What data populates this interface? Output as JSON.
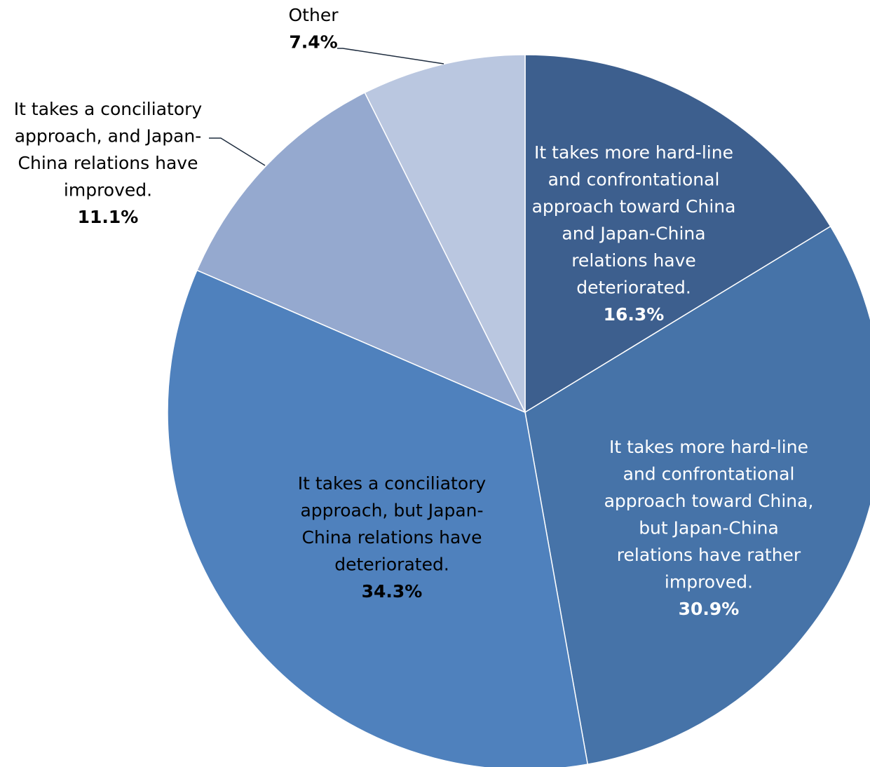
{
  "chart_data": {
    "type": "pie",
    "start_angle_deg": 0,
    "direction": "clockwise",
    "slices": [
      {
        "label_lines": [
          "It takes more hard-line",
          "and confrontational",
          "approach toward China",
          "and Japan-China",
          "relations have",
          "deteriorated."
        ],
        "value": 16.3,
        "value_label": "16.3%",
        "color": "#3d5f8e",
        "text_color": "#ffffff"
      },
      {
        "label_lines": [
          "It takes more hard-line",
          "and confrontational",
          "approach toward China,",
          "but Japan-China",
          "relations have rather",
          "improved."
        ],
        "value": 30.9,
        "value_label": "30.9%",
        "color": "#4673a8",
        "text_color": "#ffffff"
      },
      {
        "label_lines": [
          "It takes a conciliatory",
          "approach, but Japan-",
          "China relations have",
          "deteriorated."
        ],
        "value": 34.3,
        "value_label": "34.3%",
        "color": "#4f81bd",
        "text_color": "#000000"
      },
      {
        "label_lines": [
          "It takes a conciliatory",
          "approach, and Japan-",
          "China relations have",
          "improved."
        ],
        "value": 11.1,
        "value_label": "11.1%",
        "color": "#95a9cf",
        "text_color": "#000000"
      },
      {
        "label_lines": [
          "Other"
        ],
        "value": 7.4,
        "value_label": "7.4%",
        "color": "#bac7e0",
        "text_color": "#000000"
      }
    ]
  }
}
